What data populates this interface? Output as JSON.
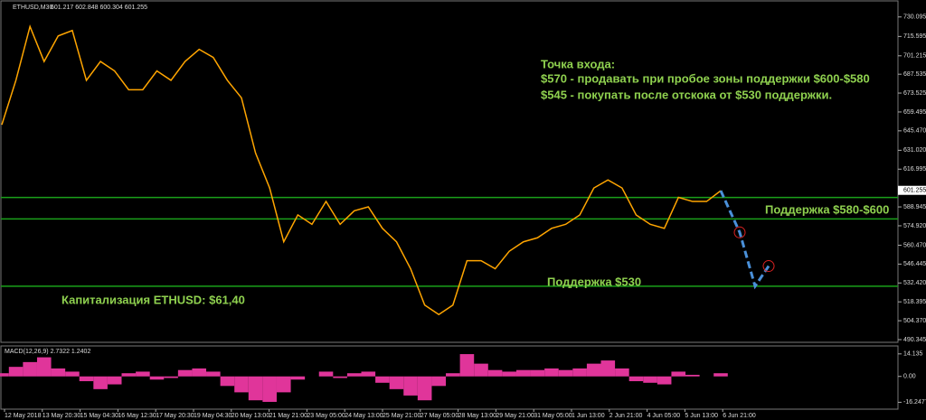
{
  "chart_data": [
    {
      "type": "line",
      "title": "ETHUSD,M30",
      "subtitle": "601.217 602.848 600.304 601.255",
      "x_labels": [
        "12 May 2018",
        "13 May 20:30",
        "15 May 04:30",
        "16 May 12:30",
        "17 May 20:30",
        "19 May 04:30",
        "20 May 13:00",
        "21 May 21:00",
        "23 May 05:00",
        "24 May 13:00",
        "25 May 21:00",
        "27 May 05:00",
        "28 May 13:00",
        "29 May 21:00",
        "31 May 05:00",
        "1 Jun 13:00",
        "2 Jun 21:00",
        "4 Jun 05:00",
        "5 Jun 13:00",
        "6 Jun 21:00"
      ],
      "series": [
        {
          "name": "ETHUSD",
          "color": "#ffa500",
          "values": [
            650,
            683,
            723,
            697,
            716,
            720,
            683,
            697,
            690,
            676,
            676,
            690,
            683,
            697,
            706,
            700,
            683,
            670,
            629,
            603,
            563,
            583,
            576,
            593,
            576,
            586,
            589,
            573,
            563,
            543,
            516,
            509,
            516,
            549,
            549,
            543,
            556,
            563,
            566,
            573,
            576,
            583,
            603,
            609,
            603,
            583,
            576,
            573,
            596,
            593,
            593,
            601
          ]
        }
      ],
      "ylim": [
        489,
        740
      ],
      "yticks": [
        730.095,
        715.595,
        701.215,
        687.535,
        673.525,
        659.495,
        {
          "value": 645.47,
          "label": "645.470"
        },
        {
          "value": 631.02,
          "label": "631.020"
        },
        616.995,
        588.945,
        {
          "value": 574.92,
          "label": "574.920"
        },
        {
          "value": 560.47,
          "label": "560.470"
        },
        546.445,
        {
          "value": 532.42,
          "label": "532.420"
        },
        518.395,
        {
          "value": 504.37,
          "label": "504.370"
        },
        490.345
      ],
      "last_price": 601.255,
      "levels": [
        596,
        580,
        530
      ],
      "level_color": "#1aa01a",
      "forecast": [
        601,
        570,
        530,
        545
      ],
      "forecast_color": "#4a90d9",
      "annotations": [
        "Точка входа:",
        "$570 - продавать при пробое зоны поддержки $600-$580",
        "$545 - покупать после отскока от $530 поддержки.",
        "Поддержка $580-$600",
        "Поддержка $530",
        "Капитализация ETHUSD: $61,40"
      ]
    },
    {
      "type": "bar",
      "title": "MACD(12,26,9) 2.7322 1.2402",
      "color": "#e0359a",
      "values": [
        2,
        6,
        9,
        12,
        5,
        3,
        -3,
        -8,
        -5,
        2,
        3,
        -2,
        -1,
        4,
        5,
        3,
        -6,
        -10,
        -15,
        -16,
        -10,
        -2,
        0,
        3,
        -1,
        2,
        3,
        -4,
        -8,
        -12,
        -15,
        -6,
        2,
        14,
        8,
        4,
        3,
        4,
        4,
        5,
        4,
        5,
        8,
        10,
        5,
        -3,
        -4,
        -5,
        3,
        1,
        0,
        2
      ],
      "ylim": [
        -20,
        18
      ],
      "yticks": [
        14.135,
        {
          "value": 0,
          "label": "0.00"
        },
        -16.2477
      ]
    }
  ]
}
